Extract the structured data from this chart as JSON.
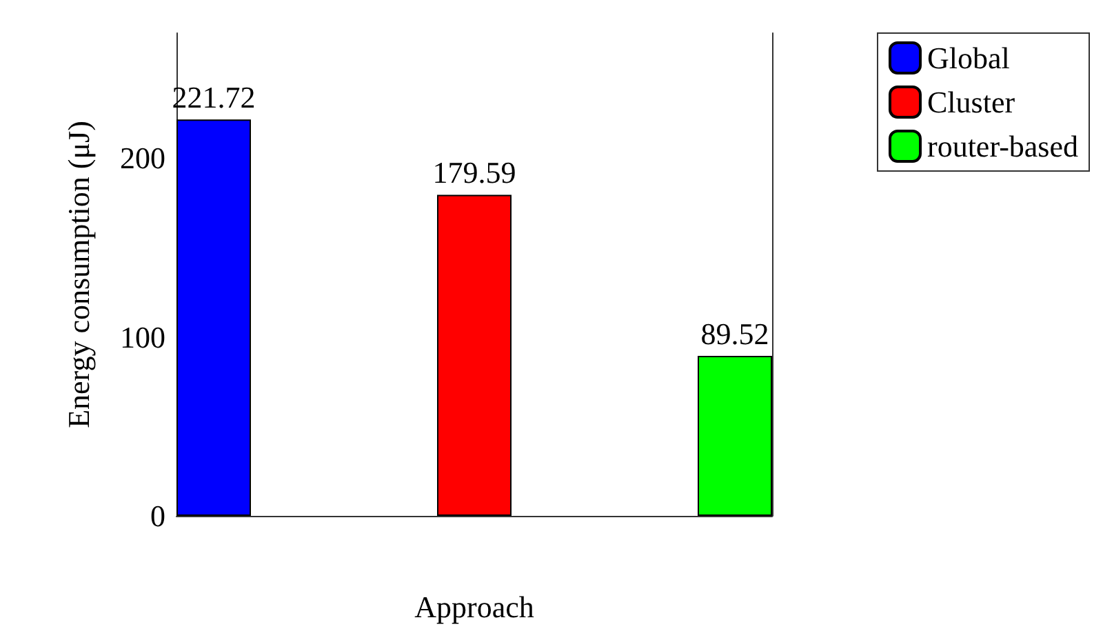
{
  "chart_data": {
    "type": "bar",
    "xlabel": "Approach",
    "ylabel": "Energy consumption (μJ)",
    "categories": [
      null
    ],
    "series": [
      {
        "name": "Global",
        "color": "#0000ff",
        "values": [
          221.72
        ]
      },
      {
        "name": "Cluster",
        "color": "#ff0000",
        "values": [
          179.59
        ]
      },
      {
        "name": "router-based",
        "color": "#00ff00",
        "values": [
          89.52
        ]
      }
    ],
    "ylim": [
      0,
      270
    ],
    "yticks": [
      0,
      100,
      200
    ],
    "data_labels": true,
    "grid": false,
    "legend": "top right"
  }
}
